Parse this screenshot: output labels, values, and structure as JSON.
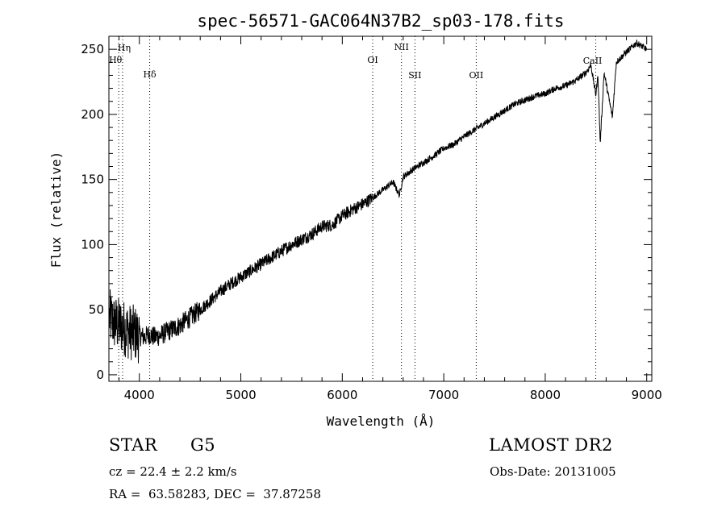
{
  "chart_data": {
    "type": "line",
    "title": "spec-56571-GAC064N37B2_sp03-178.fits",
    "xlabel": "Wavelength (Å)",
    "ylabel": "Flux (relative)",
    "xlim": [
      3700,
      9050
    ],
    "ylim": [
      -5,
      260
    ],
    "x_ticks": [
      4000,
      5000,
      6000,
      7000,
      8000,
      9000
    ],
    "y_ticks": [
      0,
      50,
      100,
      150,
      200,
      250
    ],
    "grid": false,
    "line_color": "#000000",
    "reference_lines": [
      {
        "label": "Hη",
        "x": 3835
      },
      {
        "label": "Hθ",
        "x": 3797
      },
      {
        "label": "Hδ",
        "x": 4102
      },
      {
        "label": "OI",
        "x": 6300
      },
      {
        "label": "NII",
        "x": 6583
      },
      {
        "label": "SII",
        "x": 6716
      },
      {
        "label": "OII",
        "x": 7320
      },
      {
        "label": "CaII",
        "x": 8498
      }
    ],
    "series": [
      {
        "x": [
          3700,
          3750,
          3800,
          3850,
          3900,
          3950,
          4000,
          4050,
          4100,
          4150,
          4200,
          4300,
          4400,
          4500,
          4600,
          4700,
          4800,
          4900,
          5000,
          5100,
          5200,
          5300,
          5400,
          5500,
          5600,
          5700,
          5800,
          5900,
          6000,
          6100,
          6200,
          6300,
          6400,
          6500,
          6563,
          6600,
          6700,
          6800,
          6900,
          7000,
          7100,
          7200,
          7300,
          7400,
          7500,
          7600,
          7700,
          7800,
          7900,
          8000,
          8100,
          8200,
          8300,
          8400,
          8450,
          8498,
          8520,
          8542,
          8580,
          8662,
          8700,
          8800,
          8900,
          9000
        ],
        "values": [
          45,
          40,
          38,
          36,
          33,
          32,
          30,
          29,
          31,
          29,
          30,
          34,
          38,
          44,
          50,
          57,
          64,
          70,
          75,
          80,
          85,
          90,
          95,
          100,
          104,
          108,
          114,
          115,
          122,
          127,
          131,
          136,
          142,
          148,
          138,
          152,
          158,
          163,
          168,
          174,
          177,
          183,
          188,
          193,
          198,
          203,
          208,
          211,
          214,
          216,
          220,
          222,
          226,
          232,
          238,
          215,
          230,
          178,
          232,
          198,
          240,
          248,
          255,
          250
        ]
      }
    ]
  },
  "info": {
    "object_class": "STAR",
    "subclass": "G5",
    "survey": "LAMOST DR2",
    "velocity": "cz = 22.4 ± 2.2 km/s",
    "obs_date": "Obs-Date: 20131005",
    "coords": "RA =  63.58283, DEC =  37.87258"
  }
}
